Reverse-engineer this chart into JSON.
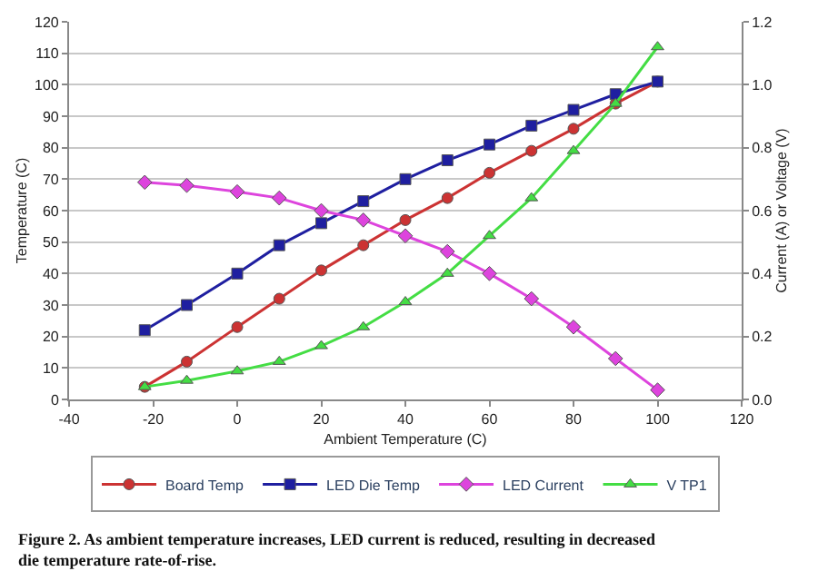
{
  "chart_data": {
    "type": "line",
    "xlabel": "Ambient Temperature (C)",
    "ylabel": "Temperature (C)",
    "y2label": "Current (A) or Voltage (V)",
    "x": [
      -22,
      -12,
      0,
      10,
      20,
      30,
      40,
      50,
      60,
      70,
      80,
      90,
      100
    ],
    "xlim": [
      -40,
      120
    ],
    "xticks": [
      -40,
      -20,
      0,
      20,
      40,
      60,
      80,
      100,
      120
    ],
    "ylim": [
      0,
      120
    ],
    "yticks": [
      0,
      10,
      20,
      30,
      40,
      50,
      60,
      70,
      80,
      90,
      100,
      110,
      120
    ],
    "y2lim": [
      0,
      1.2
    ],
    "y2ticks": [
      {
        "value": 0,
        "label": "0.0"
      },
      {
        "value": 0.2,
        "label": "0.2"
      },
      {
        "value": 0.4,
        "label": "0.4"
      },
      {
        "value": 0.6,
        "label": "0.6"
      },
      {
        "value": 0.8,
        "label": "0.8"
      },
      {
        "value": 1,
        "label": "1.0"
      },
      {
        "value": 1.2,
        "label": "1.2"
      }
    ],
    "grid": "y",
    "legend": "bottom",
    "series": [
      {
        "name": "Board Temp",
        "color": "#cc3333",
        "marker": "circle",
        "values": [
          4,
          12,
          23,
          32,
          41,
          49,
          57,
          64,
          72,
          79,
          86,
          94,
          101
        ]
      },
      {
        "name": "LED Die Temp",
        "color": "#1f1fa0",
        "marker": "square",
        "values": [
          22,
          30,
          40,
          49,
          56,
          63,
          70,
          76,
          81,
          87,
          92,
          97,
          101
        ]
      },
      {
        "name": "LED Current",
        "color": "#dd44dd",
        "marker": "diamond",
        "axis": "y2",
        "values": [
          0.69,
          0.68,
          0.66,
          0.64,
          0.6,
          0.57,
          0.52,
          0.47,
          0.4,
          0.32,
          0.23,
          0.13,
          0.03
        ]
      },
      {
        "name": "V TP1",
        "color": "#44dd44",
        "marker": "triangle",
        "axis": "y2",
        "values": [
          0.04,
          0.06,
          0.09,
          0.12,
          0.17,
          0.23,
          0.31,
          0.4,
          0.52,
          0.64,
          0.79,
          0.94,
          1.12
        ]
      }
    ],
    "annotations": [
      "Figure 2. As ambient temperature increases, LED current is reduced, resulting in decreased die temperature rate-of-rise."
    ]
  }
}
